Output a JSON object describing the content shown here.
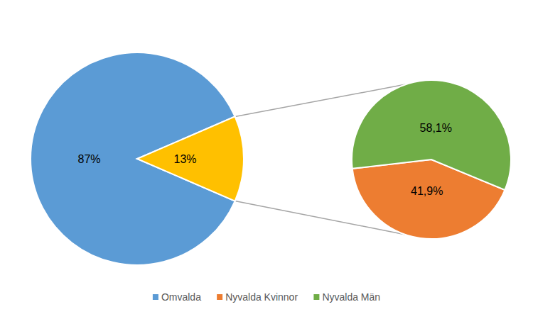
{
  "chart_data": [
    {
      "type": "pie",
      "categories": [
        "Omvalda",
        null
      ],
      "values": [
        87,
        13
      ],
      "value_labels": [
        "87%",
        "13%"
      ],
      "colors": [
        "#5B9BD5",
        "#FFC000"
      ],
      "data_labels": true,
      "legend": "bottom"
    },
    {
      "type": "pie",
      "categories": [
        "Nyvalda Kvinnor",
        "Nyvalda Män"
      ],
      "values": [
        41.9,
        58.1
      ],
      "value_labels": [
        "41,9%",
        "58,1%"
      ],
      "colors": [
        "#ED7D31",
        "#70AD47"
      ],
      "data_labels": true
    }
  ]
}
